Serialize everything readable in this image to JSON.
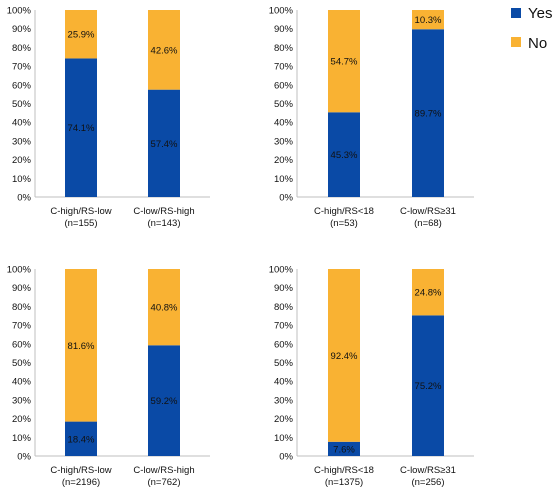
{
  "legend": {
    "items": [
      {
        "label": "Yes",
        "color": "#0a4aa6"
      },
      {
        "label": "No",
        "color": "#f9b233"
      }
    ]
  },
  "chart_data": [
    {
      "type": "bar",
      "stacked": true,
      "ylim": [
        0,
        100
      ],
      "yticks": [
        "0%",
        "10%",
        "20%",
        "30%",
        "40%",
        "50%",
        "60%",
        "70%",
        "80%",
        "90%",
        "100%"
      ],
      "categories": [
        {
          "line1": "C-high/RS-low",
          "line2": "(n=155)"
        },
        {
          "line1": "C-low/RS-high",
          "line2": "(n=143)"
        }
      ],
      "series": [
        {
          "name": "Yes",
          "values": [
            74.1,
            57.4
          ],
          "labels": [
            "74.1%",
            "57.4%"
          ]
        },
        {
          "name": "No",
          "values": [
            25.9,
            42.6
          ],
          "labels": [
            "25.9%",
            "42.6%"
          ]
        }
      ]
    },
    {
      "type": "bar",
      "stacked": true,
      "ylim": [
        0,
        100
      ],
      "yticks": [
        "0%",
        "10%",
        "20%",
        "30%",
        "40%",
        "50%",
        "60%",
        "70%",
        "80%",
        "90%",
        "100%"
      ],
      "categories": [
        {
          "line1": "C-high/RS<18",
          "line2": "(n=53)"
        },
        {
          "line1": "C-low/RS≥31",
          "line2": "(n=68)"
        }
      ],
      "series": [
        {
          "name": "Yes",
          "values": [
            45.3,
            89.7
          ],
          "labels": [
            "45.3%",
            "89.7%"
          ]
        },
        {
          "name": "No",
          "values": [
            54.7,
            10.3
          ],
          "labels": [
            "54.7%",
            "10.3%"
          ]
        }
      ]
    },
    {
      "type": "bar",
      "stacked": true,
      "ylim": [
        0,
        100
      ],
      "yticks": [
        "0%",
        "10%",
        "20%",
        "30%",
        "40%",
        "50%",
        "60%",
        "70%",
        "80%",
        "90%",
        "100%"
      ],
      "categories": [
        {
          "line1": "C-high/RS-low",
          "line2": "(n=2196)"
        },
        {
          "line1": "C-low/RS-high",
          "line2": "(n=762)"
        }
      ],
      "series": [
        {
          "name": "Yes",
          "values": [
            18.4,
            59.2
          ],
          "labels": [
            "18.4%",
            "59.2%"
          ]
        },
        {
          "name": "No",
          "values": [
            81.6,
            40.8
          ],
          "labels": [
            "81.6%",
            "40.8%"
          ]
        }
      ]
    },
    {
      "type": "bar",
      "stacked": true,
      "ylim": [
        0,
        100
      ],
      "yticks": [
        "0%",
        "10%",
        "20%",
        "30%",
        "40%",
        "50%",
        "60%",
        "70%",
        "80%",
        "90%",
        "100%"
      ],
      "categories": [
        {
          "line1": "C-high/RS<18",
          "line2": "(n=1375)"
        },
        {
          "line1": "C-low/RS≥31",
          "line2": "(n=256)"
        }
      ],
      "series": [
        {
          "name": "Yes",
          "values": [
            7.6,
            75.2
          ],
          "labels": [
            "7.6%",
            "75.2%"
          ]
        },
        {
          "name": "No",
          "values": [
            92.4,
            24.8
          ],
          "labels": [
            "92.4%",
            "24.8%"
          ]
        }
      ]
    }
  ]
}
